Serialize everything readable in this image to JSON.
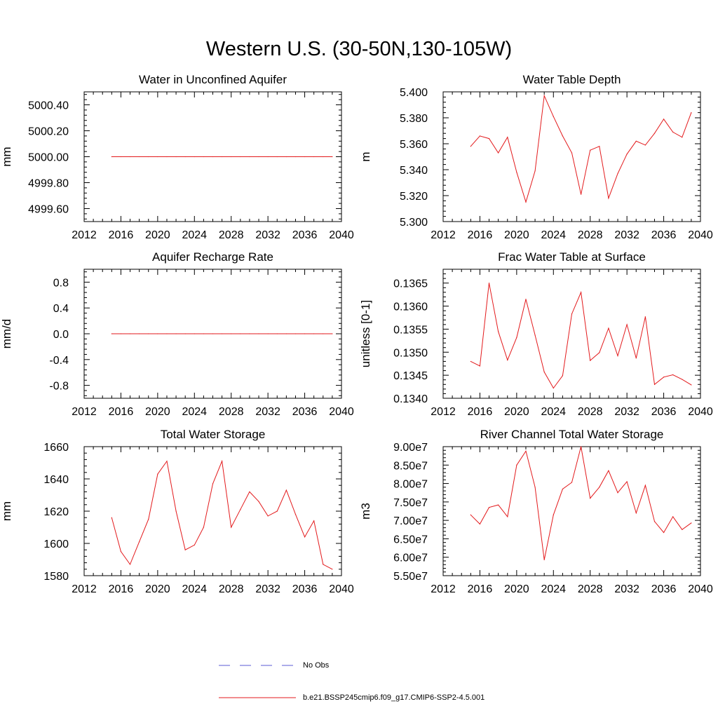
{
  "page": {
    "title": "Western U.S. (30-50N,130-105W)"
  },
  "colors": {
    "series": "#e31a1c",
    "obs": "#5b5bd6",
    "axis": "#000000"
  },
  "legend": {
    "obs_label": "No Obs",
    "model_label": "b.e21.BSSP245cmip6.f09_g17.CMIP6-SSP2-4.5.001"
  },
  "chart_data": [
    {
      "type": "line",
      "title": "Water in Unconfined Aquifer",
      "ylabel": "mm",
      "xlim": [
        2012,
        2040
      ],
      "ylim": [
        4999.5,
        5000.5
      ],
      "xticks": [
        2012,
        2016,
        2020,
        2024,
        2028,
        2032,
        2036,
        2040
      ],
      "xtick_labels": [
        "2012",
        "2016",
        "2020",
        "2024",
        "2028",
        "2032",
        "2036",
        "2040"
      ],
      "yticks": [
        4999.6,
        4999.8,
        5000.0,
        5000.2,
        5000.4
      ],
      "ytick_labels": [
        "4999.60",
        "4999.80",
        "5000.00",
        "5000.20",
        "5000.40"
      ],
      "x": [
        2015,
        2016,
        2017,
        2018,
        2019,
        2020,
        2021,
        2022,
        2023,
        2024,
        2025,
        2026,
        2027,
        2028,
        2029,
        2030,
        2031,
        2032,
        2033,
        2034,
        2035,
        2036,
        2037,
        2038,
        2039
      ],
      "series": [
        {
          "values": [
            5000.0,
            5000.0,
            5000.0,
            5000.0,
            5000.0,
            5000.0,
            5000.0,
            5000.0,
            5000.0,
            5000.0,
            5000.0,
            5000.0,
            5000.0,
            5000.0,
            5000.0,
            5000.0,
            5000.0,
            5000.0,
            5000.0,
            5000.0,
            5000.0,
            5000.0,
            5000.0,
            5000.0,
            5000.0
          ]
        }
      ]
    },
    {
      "type": "line",
      "title": "Water Table Depth",
      "ylabel": "m",
      "xlim": [
        2012,
        2040
      ],
      "ylim": [
        5.3,
        5.4
      ],
      "xticks": [
        2012,
        2016,
        2020,
        2024,
        2028,
        2032,
        2036,
        2040
      ],
      "xtick_labels": [
        "2012",
        "2016",
        "2020",
        "2024",
        "2028",
        "2032",
        "2036",
        "2040"
      ],
      "yticks": [
        5.3,
        5.32,
        5.34,
        5.36,
        5.38,
        5.4
      ],
      "ytick_labels": [
        "5.300",
        "5.320",
        "5.340",
        "5.360",
        "5.380",
        "5.400"
      ],
      "x": [
        2015,
        2016,
        2017,
        2018,
        2019,
        2020,
        2021,
        2022,
        2023,
        2024,
        2025,
        2026,
        2027,
        2028,
        2029,
        2030,
        2031,
        2032,
        2033,
        2034,
        2035,
        2036,
        2037,
        2038,
        2039
      ],
      "series": [
        {
          "values": [
            5.358,
            5.366,
            5.364,
            5.353,
            5.365,
            5.338,
            5.315,
            5.339,
            5.397,
            5.381,
            5.366,
            5.353,
            5.321,
            5.355,
            5.358,
            5.318,
            5.337,
            5.352,
            5.362,
            5.359,
            5.368,
            5.379,
            5.369,
            5.365,
            5.384
          ]
        }
      ]
    },
    {
      "type": "line",
      "title": "Aquifer Recharge Rate",
      "ylabel": "mm/d",
      "xlim": [
        2012,
        2040
      ],
      "ylim": [
        -1.0,
        1.0
      ],
      "xticks": [
        2012,
        2016,
        2020,
        2024,
        2028,
        2032,
        2036,
        2040
      ],
      "xtick_labels": [
        "2012",
        "2016",
        "2020",
        "2024",
        "2028",
        "2032",
        "2036",
        "2040"
      ],
      "yticks": [
        -0.8,
        -0.4,
        0.0,
        0.4,
        0.8
      ],
      "ytick_labels": [
        "-0.8",
        "-0.4",
        "0.0",
        "0.4",
        "0.8"
      ],
      "x": [
        2015,
        2016,
        2017,
        2018,
        2019,
        2020,
        2021,
        2022,
        2023,
        2024,
        2025,
        2026,
        2027,
        2028,
        2029,
        2030,
        2031,
        2032,
        2033,
        2034,
        2035,
        2036,
        2037,
        2038,
        2039
      ],
      "series": [
        {
          "values": [
            0.0,
            0.0,
            0.0,
            0.0,
            0.0,
            0.0,
            0.0,
            0.0,
            0.0,
            0.0,
            0.0,
            0.0,
            0.0,
            0.0,
            0.0,
            0.0,
            0.0,
            0.0,
            0.0,
            0.0,
            0.0,
            0.0,
            0.0,
            0.0,
            0.0
          ]
        }
      ]
    },
    {
      "type": "line",
      "title": "Frac Water Table at Surface",
      "ylabel": "unitless [0-1]",
      "xlim": [
        2012,
        2040
      ],
      "ylim": [
        0.134,
        0.1368
      ],
      "xticks": [
        2012,
        2016,
        2020,
        2024,
        2028,
        2032,
        2036,
        2040
      ],
      "xtick_labels": [
        "2012",
        "2016",
        "2020",
        "2024",
        "2028",
        "2032",
        "2036",
        "2040"
      ],
      "yticks": [
        0.134,
        0.1345,
        0.135,
        0.1355,
        0.136,
        0.1365
      ],
      "ytick_labels": [
        "0.1340",
        "0.1345",
        "0.1350",
        "0.1355",
        "0.1360",
        "0.1365"
      ],
      "x": [
        2015,
        2016,
        2017,
        2018,
        2019,
        2020,
        2021,
        2022,
        2023,
        2024,
        2025,
        2026,
        2027,
        2028,
        2029,
        2030,
        2031,
        2032,
        2033,
        2034,
        2035,
        2036,
        2037,
        2038,
        2039
      ],
      "series": [
        {
          "values": [
            0.1348,
            0.1347,
            0.1365,
            0.13545,
            0.13483,
            0.13532,
            0.13615,
            0.13537,
            0.13457,
            0.13422,
            0.13449,
            0.13583,
            0.1363,
            0.13482,
            0.13499,
            0.13552,
            0.13492,
            0.1356,
            0.13487,
            0.13577,
            0.1343,
            0.13446,
            0.13451,
            0.13441,
            0.13429
          ]
        }
      ]
    },
    {
      "type": "line",
      "title": "Total Water Storage",
      "ylabel": "mm",
      "xlim": [
        2012,
        2040
      ],
      "ylim": [
        1580,
        1660
      ],
      "xticks": [
        2012,
        2016,
        2020,
        2024,
        2028,
        2032,
        2036,
        2040
      ],
      "xtick_labels": [
        "2012",
        "2016",
        "2020",
        "2024",
        "2028",
        "2032",
        "2036",
        "2040"
      ],
      "yticks": [
        1580,
        1600,
        1620,
        1640,
        1660
      ],
      "ytick_labels": [
        "1580",
        "1600",
        "1620",
        "1640",
        "1660"
      ],
      "x": [
        2015,
        2016,
        2017,
        2018,
        2019,
        2020,
        2021,
        2022,
        2023,
        2024,
        2025,
        2026,
        2027,
        2028,
        2029,
        2030,
        2031,
        2032,
        2033,
        2034,
        2035,
        2036,
        2037,
        2038,
        2039
      ],
      "series": [
        {
          "values": [
            1616,
            1595,
            1587,
            1601,
            1615,
            1643,
            1651,
            1620,
            1596,
            1599,
            1610,
            1637,
            1651,
            1610,
            1621,
            1632,
            1626,
            1617,
            1620,
            1633,
            1618,
            1604,
            1614,
            1587,
            1584
          ]
        }
      ]
    },
    {
      "type": "line",
      "title": "River Channel Total Water Storage",
      "ylabel": "m3",
      "xlim": [
        2012,
        2040
      ],
      "ylim": [
        55000000,
        90000000
      ],
      "xticks": [
        2012,
        2016,
        2020,
        2024,
        2028,
        2032,
        2036,
        2040
      ],
      "xtick_labels": [
        "2012",
        "2016",
        "2020",
        "2024",
        "2028",
        "2032",
        "2036",
        "2040"
      ],
      "yticks": [
        55000000,
        60000000,
        65000000,
        70000000,
        75000000,
        80000000,
        85000000,
        90000000
      ],
      "ytick_labels": [
        "5.50e7",
        "6.00e7",
        "6.50e7",
        "7.00e7",
        "7.50e7",
        "8.00e7",
        "8.50e7",
        "9.00e7"
      ],
      "x": [
        2015,
        2016,
        2017,
        2018,
        2019,
        2020,
        2021,
        2022,
        2023,
        2024,
        2025,
        2026,
        2027,
        2028,
        2029,
        2030,
        2031,
        2032,
        2033,
        2034,
        2035,
        2036,
        2037,
        2038,
        2039
      ],
      "series": [
        {
          "values": [
            71500000,
            69000000,
            73500000,
            74200000,
            71000000,
            85000000,
            88800000,
            79000000,
            59300000,
            71500000,
            78500000,
            80300000,
            90000000,
            76000000,
            79000000,
            83500000,
            77500000,
            80500000,
            72000000,
            79500000,
            69700000,
            66700000,
            71000000,
            67500000,
            69300000
          ]
        }
      ]
    }
  ]
}
